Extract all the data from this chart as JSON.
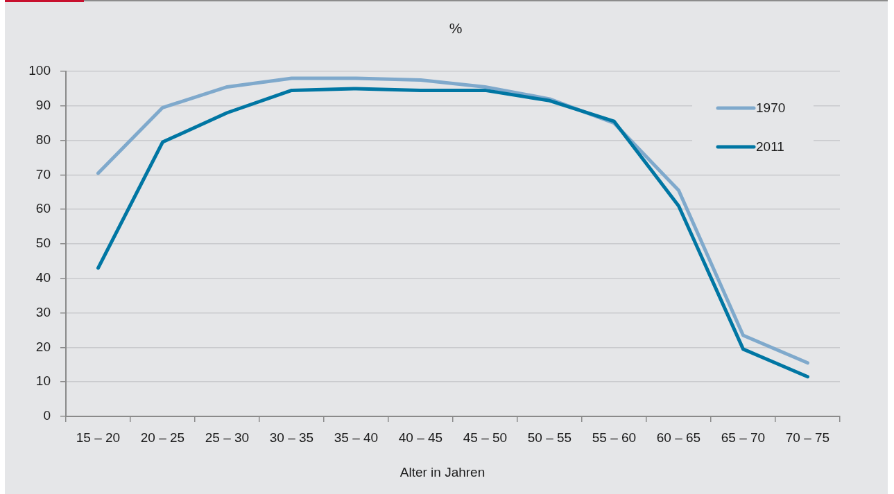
{
  "chart_data": {
    "type": "line",
    "title": "%",
    "xlabel": "Alter in Jahren",
    "categories": [
      "15 – 20",
      "20 – 25",
      "25 – 30",
      "30 – 35",
      "35 – 40",
      "40 – 45",
      "45 – 50",
      "50 – 55",
      "55 – 60",
      "60 – 65",
      "65 – 70",
      "70 – 75"
    ],
    "series": [
      {
        "name": "1970",
        "color": "#7fa9cc",
        "values": [
          70.5,
          89.5,
          95.5,
          98,
          98,
          97.5,
          95.5,
          92,
          85,
          65.5,
          23.5,
          15.5
        ]
      },
      {
        "name": "2011",
        "color": "#0076a3",
        "values": [
          43,
          79.5,
          88,
          94.5,
          95,
          94.5,
          94.5,
          91.5,
          85.5,
          61,
          19.5,
          11.5
        ]
      }
    ],
    "ylim": [
      0,
      100
    ],
    "yticks": [
      0,
      10,
      20,
      30,
      40,
      50,
      60,
      70,
      80,
      90,
      100
    ],
    "grid": "y",
    "legend": "top right",
    "marker": "none",
    "line_style": "solid"
  }
}
